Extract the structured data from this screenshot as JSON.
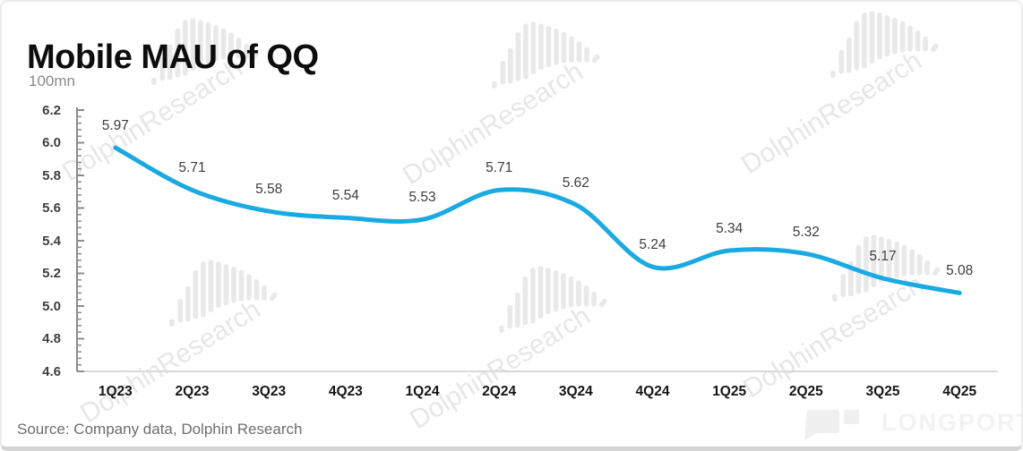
{
  "header": {
    "title": "Mobile MAU of QQ",
    "unit_label": "100mn"
  },
  "footer": {
    "source": "Source: Company data, Dolphin Research",
    "brand": "LONGPORT"
  },
  "watermark": {
    "text": "DolphinResearch",
    "icon": "dolphin-bars-logo"
  },
  "colors": {
    "line": "#1BA9E1",
    "axis": "#8c8c8c",
    "baseline": "#d9d9d9",
    "title": "#0d0d0d",
    "data_label": "#3d3d3d",
    "watermark": "#e7e7e7"
  },
  "chart_data": {
    "type": "line",
    "title": "Mobile MAU of QQ",
    "xlabel": "",
    "ylabel": "100mn",
    "categories": [
      "1Q23",
      "2Q23",
      "3Q23",
      "4Q23",
      "1Q24",
      "2Q24",
      "3Q24",
      "4Q24",
      "1Q25",
      "2Q25",
      "3Q25",
      "4Q25"
    ],
    "values": [
      5.97,
      5.71,
      5.58,
      5.54,
      5.53,
      5.71,
      5.62,
      5.24,
      5.34,
      5.32,
      5.17,
      5.08
    ],
    "ylim": [
      4.6,
      6.2
    ],
    "major_unit": 0.2,
    "minor_unit": 0.04,
    "grid": false,
    "smooth": true,
    "data_labels": true,
    "legend": "none"
  }
}
